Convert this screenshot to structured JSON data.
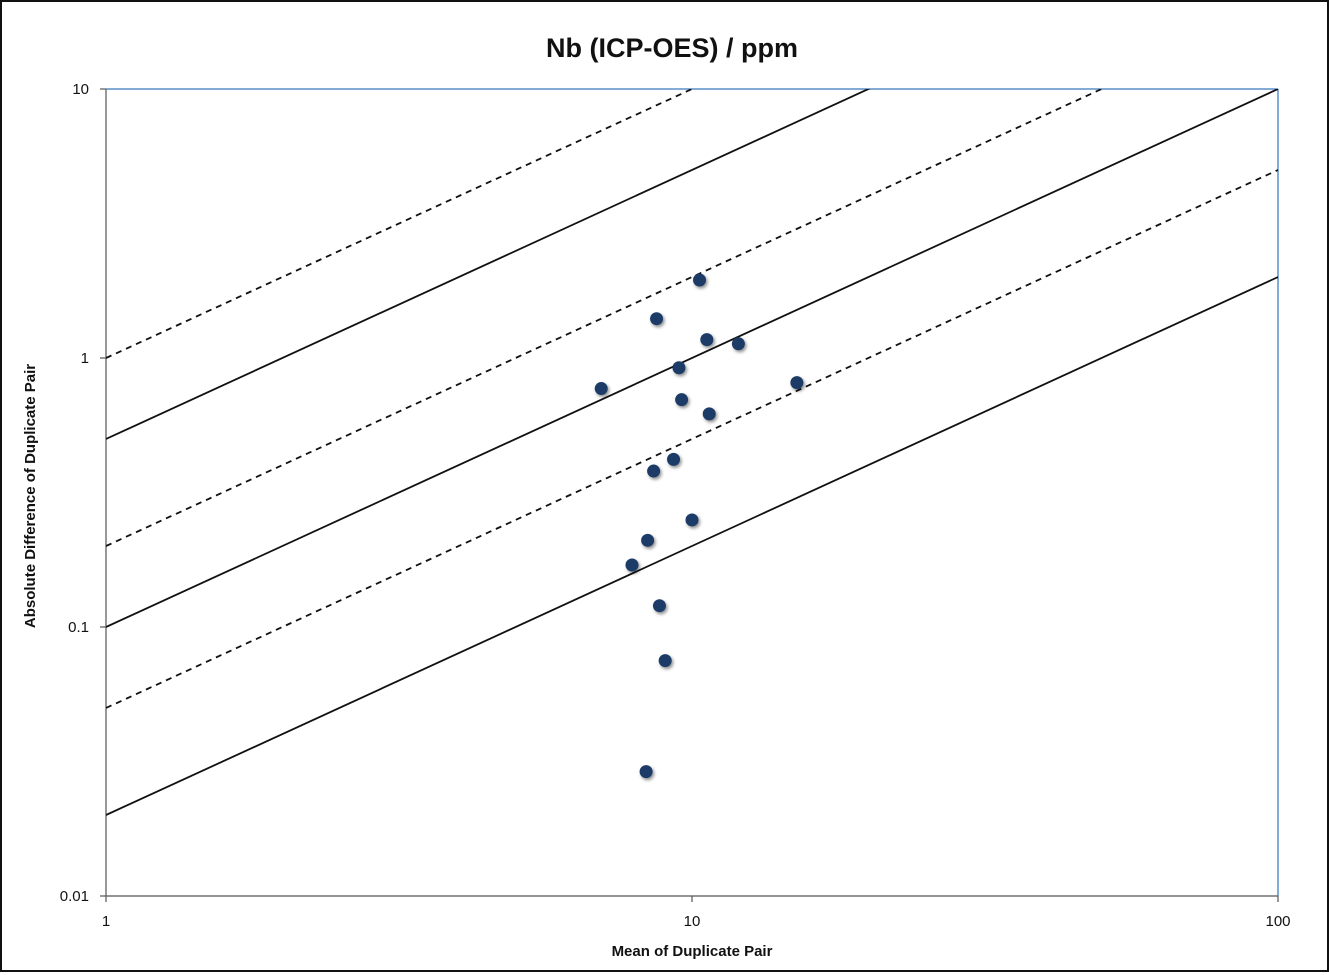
{
  "chart_data": {
    "type": "scatter",
    "title": "Nb (ICP-OES) / ppm",
    "xlabel": "Mean of Duplicate Pair",
    "ylabel": "Absolute Difference of Duplicate Pair",
    "x_scale": "log",
    "y_scale": "log",
    "xlim": [
      1,
      100
    ],
    "ylim": [
      0.01,
      10
    ],
    "x_ticks": [
      1,
      10,
      100
    ],
    "x_tick_labels": [
      "1",
      "10",
      "100"
    ],
    "y_ticks": [
      0.01,
      0.1,
      1,
      10
    ],
    "y_tick_labels": [
      "0.01",
      "0.1",
      "1",
      "10"
    ],
    "grid": false,
    "legend": "none",
    "colors": {
      "point": "#1b3a66",
      "plot_border": "#5b8fc9",
      "line": "#111111"
    },
    "reference_lines": [
      {
        "style": "dashed",
        "coefficient": 1.0
      },
      {
        "style": "solid",
        "coefficient": 0.5
      },
      {
        "style": "dashed",
        "coefficient": 0.2
      },
      {
        "style": "solid",
        "coefficient": 0.1
      },
      {
        "style": "dashed",
        "coefficient": 0.05
      },
      {
        "style": "solid",
        "coefficient": 0.02
      }
    ],
    "points": [
      {
        "x": 10.3,
        "y": 1.95
      },
      {
        "x": 8.7,
        "y": 1.4
      },
      {
        "x": 10.6,
        "y": 1.17
      },
      {
        "x": 12.0,
        "y": 1.13
      },
      {
        "x": 9.5,
        "y": 0.92
      },
      {
        "x": 7.0,
        "y": 0.77
      },
      {
        "x": 15.1,
        "y": 0.81
      },
      {
        "x": 9.6,
        "y": 0.7
      },
      {
        "x": 10.7,
        "y": 0.62
      },
      {
        "x": 9.3,
        "y": 0.42
      },
      {
        "x": 8.6,
        "y": 0.38
      },
      {
        "x": 10.0,
        "y": 0.25
      },
      {
        "x": 8.4,
        "y": 0.21
      },
      {
        "x": 7.9,
        "y": 0.17
      },
      {
        "x": 8.8,
        "y": 0.12
      },
      {
        "x": 9.0,
        "y": 0.075
      },
      {
        "x": 8.35,
        "y": 0.029
      }
    ]
  }
}
